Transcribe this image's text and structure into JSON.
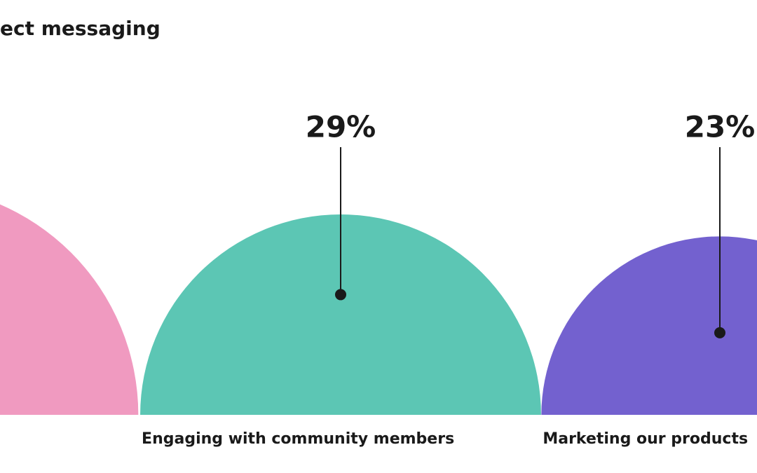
{
  "chart_data": {
    "type": "semicircle",
    "title": "ect messaging",
    "categories": [
      null,
      "Engaging with community members",
      "Marketing our products"
    ],
    "values": [
      38,
      29,
      23
    ],
    "value_labels": [
      null,
      "29%",
      "23%"
    ],
    "colors": [
      "#f09ac0",
      "#5cc6b4",
      "#7361cf"
    ]
  }
}
